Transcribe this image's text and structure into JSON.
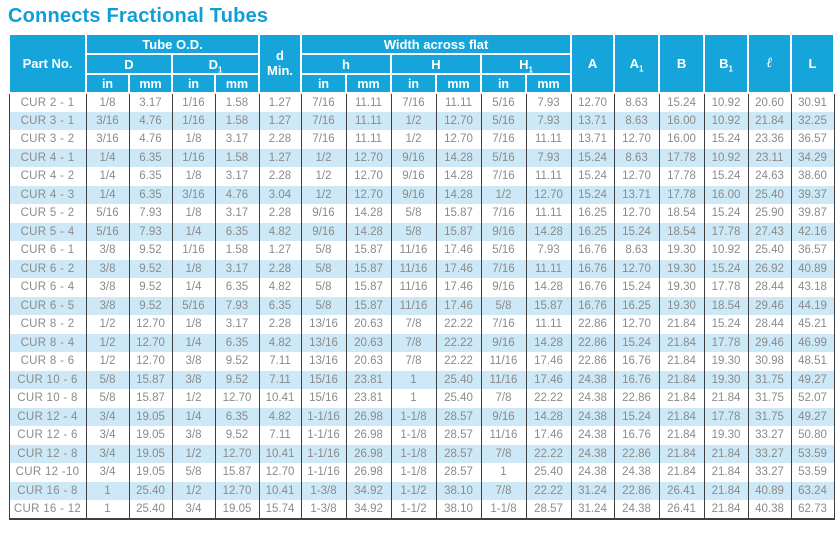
{
  "title": "Connects Fractional Tubes",
  "colors": {
    "header": "#16a5da",
    "stripe": "#cde8f6",
    "title": "#0f9fd8",
    "text": "#8b8b8b",
    "line": "#3f3f3f"
  },
  "table": {
    "header": {
      "part_no": "Part No.",
      "tube_od": "Tube O.D.",
      "width_across_flat": "Width across flat",
      "d_min_line1": "d",
      "d_min_line2": "Min.",
      "col_D": "D",
      "col_D1_base": "D",
      "col_h": "h",
      "col_H": "H",
      "col_H1_base": "H",
      "col_A": "A",
      "col_A1_base": "A",
      "col_B": "B",
      "col_B1_base": "B",
      "col_ell": "ℓ",
      "col_L": "L",
      "sub": "1",
      "unit_in": "in",
      "unit_mm": "mm"
    },
    "rows": [
      [
        "CUR 2 - 1",
        "1/8",
        "3.17",
        "1/16",
        "1.58",
        "1.27",
        "7/16",
        "11.11",
        "7/16",
        "11.11",
        "5/16",
        "7.93",
        "12.70",
        "8.63",
        "15.24",
        "10.92",
        "20.60",
        "30.91"
      ],
      [
        "CUR 3 - 1",
        "3/16",
        "4.76",
        "1/16",
        "1.58",
        "1.27",
        "7/16",
        "11.11",
        "1/2",
        "12.70",
        "5/16",
        "7.93",
        "13.71",
        "8.63",
        "16.00",
        "10.92",
        "21.84",
        "32.25"
      ],
      [
        "CUR 3 - 2",
        "3/16",
        "4.76",
        "1/8",
        "3.17",
        "2.28",
        "7/16",
        "11.11",
        "1/2",
        "12.70",
        "7/16",
        "11.11",
        "13.71",
        "12.70",
        "16.00",
        "15.24",
        "23.36",
        "36.57"
      ],
      [
        "CUR 4 - 1",
        "1/4",
        "6.35",
        "1/16",
        "1.58",
        "1.27",
        "1/2",
        "12.70",
        "9/16",
        "14.28",
        "5/16",
        "7.93",
        "15.24",
        "8.63",
        "17.78",
        "10.92",
        "23.11",
        "34.29"
      ],
      [
        "CUR 4 - 2",
        "1/4",
        "6.35",
        "1/8",
        "3.17",
        "2.28",
        "1/2",
        "12.70",
        "9/16",
        "14.28",
        "7/16",
        "11.11",
        "15.24",
        "12.70",
        "17.78",
        "15.24",
        "24.63",
        "38.60"
      ],
      [
        "CUR 4 - 3",
        "1/4",
        "6.35",
        "3/16",
        "4.76",
        "3.04",
        "1/2",
        "12.70",
        "9/16",
        "14.28",
        "1/2",
        "12.70",
        "15.24",
        "13.71",
        "17.78",
        "16.00",
        "25.40",
        "39.37"
      ],
      [
        "CUR 5 - 2",
        "5/16",
        "7.93",
        "1/8",
        "3.17",
        "2.28",
        "9/16",
        "14.28",
        "5/8",
        "15.87",
        "7/16",
        "11.11",
        "16.25",
        "12.70",
        "18.54",
        "15.24",
        "25.90",
        "39.87"
      ],
      [
        "CUR 5 - 4",
        "5/16",
        "7.93",
        "1/4",
        "6.35",
        "4.82",
        "9/16",
        "14.28",
        "5/8",
        "15.87",
        "9/16",
        "14.28",
        "16.25",
        "15.24",
        "18.54",
        "17.78",
        "27.43",
        "42.16"
      ],
      [
        "CUR 6 - 1",
        "3/8",
        "9.52",
        "1/16",
        "1.58",
        "1.27",
        "5/8",
        "15.87",
        "11/16",
        "17.46",
        "5/16",
        "7.93",
        "16.76",
        "8.63",
        "19.30",
        "10.92",
        "25.40",
        "36.57"
      ],
      [
        "CUR 6 - 2",
        "3/8",
        "9.52",
        "1/8",
        "3.17",
        "2.28",
        "5/8",
        "15.87",
        "11/16",
        "17.46",
        "7/16",
        "11.11",
        "16.76",
        "12.70",
        "19.30",
        "15.24",
        "26.92",
        "40.89"
      ],
      [
        "CUR 6 - 4",
        "3/8",
        "9.52",
        "1/4",
        "6.35",
        "4.82",
        "5/8",
        "15.87",
        "11/16",
        "17.46",
        "9/16",
        "14.28",
        "16.76",
        "15.24",
        "19.30",
        "17.78",
        "28.44",
        "43.18"
      ],
      [
        "CUR 6 - 5",
        "3/8",
        "9.52",
        "5/16",
        "7.93",
        "6.35",
        "5/8",
        "15.87",
        "11/16",
        "17.46",
        "5/8",
        "15.87",
        "16.76",
        "16.25",
        "19.30",
        "18.54",
        "29.46",
        "44.19"
      ],
      [
        "CUR 8 - 2",
        "1/2",
        "12.70",
        "1/8",
        "3.17",
        "2.28",
        "13/16",
        "20.63",
        "7/8",
        "22.22",
        "7/16",
        "11.11",
        "22.86",
        "12.70",
        "21.84",
        "15.24",
        "28.44",
        "45.21"
      ],
      [
        "CUR 8 - 4",
        "1/2",
        "12.70",
        "1/4",
        "6.35",
        "4.82",
        "13/16",
        "20.63",
        "7/8",
        "22.22",
        "9/16",
        "14.28",
        "22.86",
        "15.24",
        "21.84",
        "17.78",
        "29.46",
        "46.99"
      ],
      [
        "CUR 8 - 6",
        "1/2",
        "12.70",
        "3/8",
        "9.52",
        "7.11",
        "13/16",
        "20.63",
        "7/8",
        "22.22",
        "11/16",
        "17.46",
        "22.86",
        "16.76",
        "21.84",
        "19.30",
        "30.98",
        "48.51"
      ],
      [
        "CUR 10 - 6",
        "5/8",
        "15.87",
        "3/8",
        "9.52",
        "7.11",
        "15/16",
        "23.81",
        "1",
        "25.40",
        "11/16",
        "17.46",
        "24.38",
        "16.76",
        "21.84",
        "19.30",
        "31.75",
        "49.27"
      ],
      [
        "CUR 10 - 8",
        "5/8",
        "15.87",
        "1/2",
        "12.70",
        "10.41",
        "15/16",
        "23.81",
        "1",
        "25.40",
        "7/8",
        "22.22",
        "24.38",
        "22.86",
        "21.84",
        "21.84",
        "31.75",
        "52.07"
      ],
      [
        "CUR 12 - 4",
        "3/4",
        "19.05",
        "1/4",
        "6.35",
        "4.82",
        "1-1/16",
        "26.98",
        "1-1/8",
        "28.57",
        "9/16",
        "14.28",
        "24.38",
        "15.24",
        "21.84",
        "17.78",
        "31.75",
        "49.27"
      ],
      [
        "CUR 12 - 6",
        "3/4",
        "19.05",
        "3/8",
        "9.52",
        "7.11",
        "1-1/16",
        "26.98",
        "1-1/8",
        "28.57",
        "11/16",
        "17.46",
        "24.38",
        "16.76",
        "21.84",
        "19.30",
        "33.27",
        "50.80"
      ],
      [
        "CUR 12 - 8",
        "3/4",
        "19.05",
        "1/2",
        "12.70",
        "10.41",
        "1-1/16",
        "26.98",
        "1-1/8",
        "28.57",
        "7/8",
        "22.22",
        "24.38",
        "22.86",
        "21.84",
        "21.84",
        "33.27",
        "53.59"
      ],
      [
        "CUR 12 -10",
        "3/4",
        "19.05",
        "5/8",
        "15.87",
        "12.70",
        "1-1/16",
        "26.98",
        "1-1/8",
        "28.57",
        "1",
        "25.40",
        "24.38",
        "24.38",
        "21.84",
        "21.84",
        "33.27",
        "53.59"
      ],
      [
        "CUR 16 - 8",
        "1",
        "25.40",
        "1/2",
        "12.70",
        "10.41",
        "1-3/8",
        "34.92",
        "1-1/2",
        "38.10",
        "7/8",
        "22.22",
        "31.24",
        "22.86",
        "26.41",
        "21.84",
        "40.89",
        "63.24"
      ],
      [
        "CUR 16 - 12",
        "1",
        "25.40",
        "3/4",
        "19.05",
        "15.74",
        "1-3/8",
        "34.92",
        "1-1/2",
        "38.10",
        "1-1/8",
        "28.57",
        "31.24",
        "24.38",
        "26.41",
        "21.84",
        "40.38",
        "62.73"
      ]
    ]
  }
}
